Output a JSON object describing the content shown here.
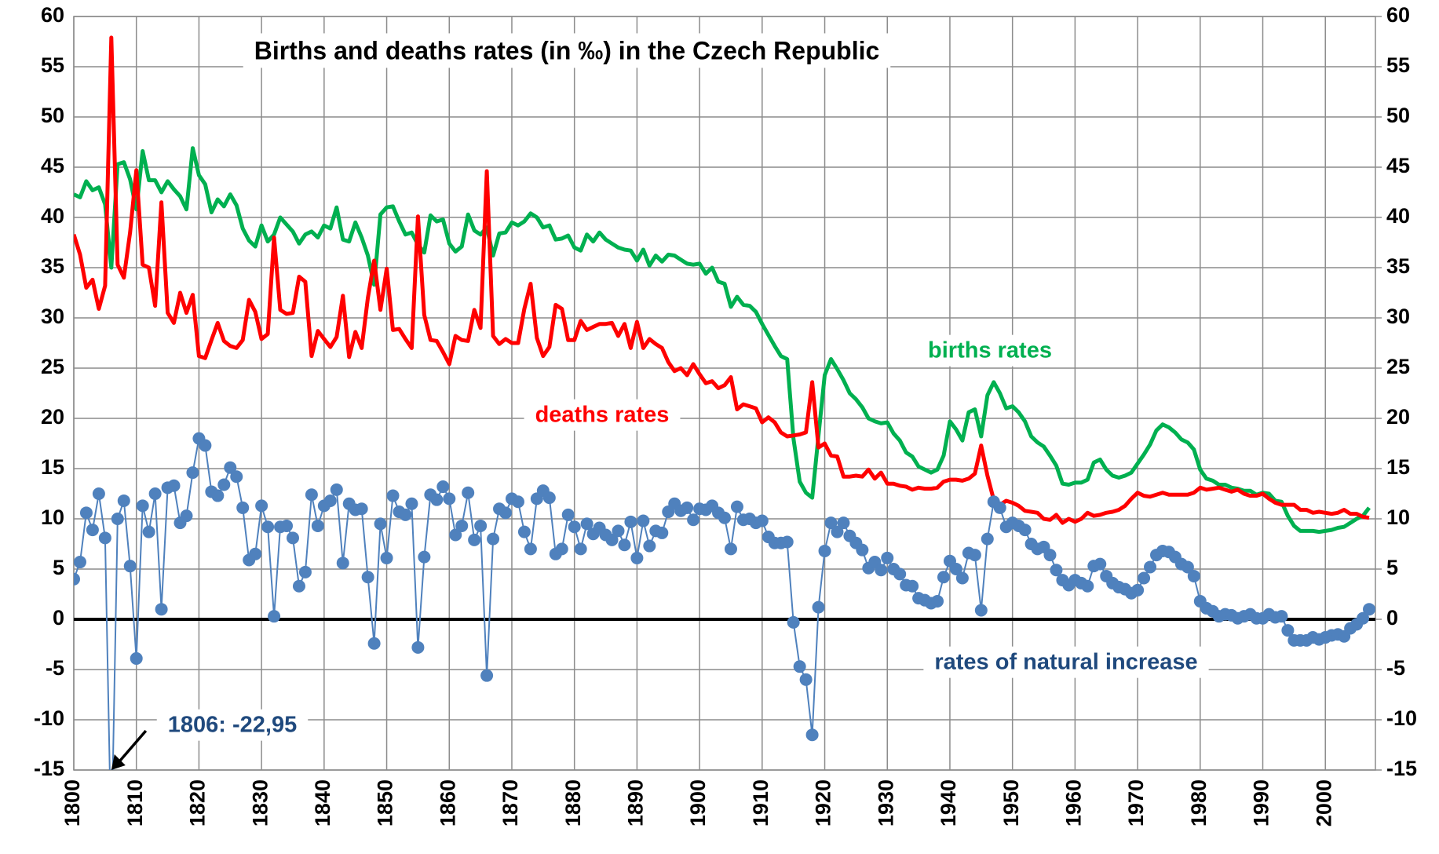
{
  "chart_data": {
    "type": "line",
    "title": "Births and deaths rates (in ‰) in the Czech Republic",
    "x": [
      1800,
      1801,
      1802,
      1803,
      1804,
      1805,
      1806,
      1807,
      1808,
      1809,
      1810,
      1811,
      1812,
      1813,
      1814,
      1815,
      1816,
      1817,
      1818,
      1819,
      1820,
      1821,
      1822,
      1823,
      1824,
      1825,
      1826,
      1827,
      1828,
      1829,
      1830,
      1831,
      1832,
      1833,
      1834,
      1835,
      1836,
      1837,
      1838,
      1839,
      1840,
      1841,
      1842,
      1843,
      1844,
      1845,
      1846,
      1847,
      1848,
      1849,
      1850,
      1851,
      1852,
      1853,
      1854,
      1855,
      1856,
      1857,
      1858,
      1859,
      1860,
      1861,
      1862,
      1863,
      1864,
      1865,
      1866,
      1867,
      1868,
      1869,
      1870,
      1871,
      1872,
      1873,
      1874,
      1875,
      1876,
      1877,
      1878,
      1879,
      1880,
      1881,
      1882,
      1883,
      1884,
      1885,
      1886,
      1887,
      1888,
      1889,
      1890,
      1891,
      1892,
      1893,
      1894,
      1895,
      1896,
      1897,
      1898,
      1899,
      1900,
      1901,
      1902,
      1903,
      1904,
      1905,
      1906,
      1907,
      1908,
      1909,
      1910,
      1911,
      1912,
      1913,
      1914,
      1915,
      1916,
      1917,
      1918,
      1919,
      1920,
      1921,
      1922,
      1923,
      1924,
      1925,
      1926,
      1927,
      1928,
      1929,
      1930,
      1931,
      1932,
      1933,
      1934,
      1935,
      1936,
      1937,
      1938,
      1939,
      1940,
      1941,
      1942,
      1943,
      1944,
      1945,
      1946,
      1947,
      1948,
      1949,
      1950,
      1951,
      1952,
      1953,
      1954,
      1955,
      1956,
      1957,
      1958,
      1959,
      1960,
      1961,
      1962,
      1963,
      1964,
      1965,
      1966,
      1967,
      1968,
      1969,
      1970,
      1971,
      1972,
      1973,
      1974,
      1975,
      1976,
      1977,
      1978,
      1979,
      1980,
      1981,
      1982,
      1983,
      1984,
      1985,
      1986,
      1987,
      1988,
      1989,
      1990,
      1991,
      1992,
      1993,
      1994,
      1995,
      1996,
      1997,
      1998,
      1999,
      2000,
      2001,
      2002,
      2003,
      2004,
      2005,
      2006,
      2007
    ],
    "series": [
      {
        "name": "births rates",
        "color": "#00b050",
        "values": [
          42.3,
          42.0,
          43.6,
          42.7,
          43.0,
          41.3,
          35.0,
          45.3,
          45.5,
          43.8,
          40.8,
          46.6,
          43.7,
          43.7,
          42.5,
          43.6,
          42.8,
          42.1,
          40.8,
          46.9,
          44.2,
          43.3,
          40.5,
          41.8,
          41.1,
          42.3,
          41.2,
          38.9,
          37.7,
          37.1,
          39.2,
          37.6,
          38.3,
          40.0,
          39.3,
          38.6,
          37.4,
          38.3,
          38.6,
          38.0,
          39.2,
          38.9,
          41.0,
          37.8,
          37.6,
          39.5,
          38.0,
          36.2,
          33.3,
          40.3,
          41.0,
          41.1,
          39.6,
          38.3,
          38.5,
          37.3,
          36.5,
          40.2,
          39.6,
          39.8,
          37.4,
          36.6,
          37.1,
          40.3,
          38.7,
          38.3,
          39.0,
          36.2,
          38.4,
          38.5,
          39.5,
          39.2,
          39.6,
          40.4,
          40.0,
          39.0,
          39.2,
          37.8,
          37.9,
          38.2,
          37.0,
          36.7,
          38.3,
          37.6,
          38.5,
          37.8,
          37.4,
          37.0,
          36.8,
          36.7,
          35.7,
          36.8,
          35.2,
          36.2,
          35.6,
          36.3,
          36.2,
          35.8,
          35.4,
          35.3,
          35.4,
          34.4,
          35.0,
          33.6,
          33.4,
          31.1,
          32.1,
          31.3,
          31.2,
          30.6,
          29.4,
          28.3,
          27.2,
          26.2,
          25.9,
          18.0,
          13.7,
          12.6,
          12.1,
          18.3,
          24.3,
          25.9,
          24.9,
          23.8,
          22.5,
          21.9,
          21.1,
          20.0,
          19.7,
          19.5,
          19.6,
          18.5,
          17.8,
          16.6,
          16.2,
          15.2,
          14.9,
          14.6,
          14.9,
          16.3,
          19.7,
          18.9,
          17.8,
          20.6,
          20.9,
          18.2,
          22.3,
          23.6,
          22.5,
          21.0,
          21.2,
          20.6,
          19.7,
          18.2,
          17.6,
          17.2,
          16.3,
          15.3,
          13.5,
          13.4,
          13.6,
          13.6,
          13.9,
          15.6,
          15.9,
          14.9,
          14.3,
          14.1,
          14.3,
          14.6,
          15.5,
          16.4,
          17.4,
          18.8,
          19.4,
          19.1,
          18.6,
          17.9,
          17.6,
          16.9,
          14.9,
          14.0,
          13.8,
          13.4,
          13.4,
          13.1,
          13.0,
          12.8,
          12.8,
          12.4,
          12.6,
          12.5,
          11.8,
          11.7,
          10.3,
          9.3,
          8.8,
          8.8,
          8.8,
          8.7,
          8.8,
          8.9,
          9.1,
          9.2,
          9.6,
          10.0,
          10.3,
          11.1
        ]
      },
      {
        "name": "deaths rates",
        "color": "#ff0000",
        "values": [
          38.3,
          36.3,
          33.0,
          33.8,
          30.9,
          33.2,
          57.9,
          35.3,
          34.0,
          38.5,
          44.7,
          35.3,
          35.0,
          31.2,
          41.5,
          30.5,
          29.5,
          32.5,
          30.5,
          32.3,
          26.2,
          26.0,
          27.8,
          29.5,
          27.7,
          27.2,
          27.0,
          27.8,
          31.8,
          30.6,
          27.9,
          28.4,
          38.0,
          30.8,
          30.4,
          30.5,
          34.1,
          33.6,
          26.2,
          28.7,
          27.9,
          27.1,
          28.1,
          32.2,
          26.1,
          28.6,
          27.0,
          32.0,
          35.7,
          30.8,
          34.9,
          28.8,
          28.9,
          27.9,
          27.0,
          40.1,
          30.3,
          27.8,
          27.7,
          26.6,
          25.4,
          28.2,
          27.8,
          27.7,
          30.8,
          29.0,
          44.6,
          28.2,
          27.4,
          27.9,
          27.5,
          27.5,
          30.9,
          33.4,
          28.0,
          26.2,
          27.1,
          31.3,
          30.9,
          27.8,
          27.8,
          29.7,
          28.8,
          29.1,
          29.4,
          29.4,
          29.5,
          28.2,
          29.4,
          27.0,
          29.6,
          27.0,
          27.9,
          27.4,
          27.0,
          25.6,
          24.7,
          25.0,
          24.3,
          25.4,
          24.4,
          23.5,
          23.7,
          23.0,
          23.3,
          24.1,
          20.9,
          21.4,
          21.2,
          21.0,
          19.6,
          20.1,
          19.6,
          18.6,
          18.2,
          18.3,
          18.4,
          18.6,
          23.6,
          17.1,
          17.5,
          16.3,
          16.2,
          14.2,
          14.2,
          14.3,
          14.2,
          14.9,
          14.0,
          14.6,
          13.5,
          13.5,
          13.3,
          13.2,
          12.9,
          13.1,
          13.0,
          13.0,
          13.1,
          13.7,
          13.9,
          13.9,
          13.8,
          14.0,
          14.5,
          17.3,
          14.3,
          11.9,
          11.4,
          11.8,
          11.6,
          11.3,
          10.8,
          10.7,
          10.6,
          10.0,
          9.9,
          10.4,
          9.6,
          10.0,
          9.7,
          10.0,
          10.6,
          10.3,
          10.4,
          10.6,
          10.7,
          10.9,
          11.3,
          12.0,
          12.6,
          12.3,
          12.2,
          12.4,
          12.6,
          12.4,
          12.4,
          12.4,
          12.4,
          12.6,
          13.1,
          12.9,
          13.0,
          13.1,
          12.9,
          12.7,
          12.9,
          12.5,
          12.3,
          12.3,
          12.5,
          12.0,
          11.6,
          11.4,
          11.4,
          11.4,
          10.9,
          10.9,
          10.6,
          10.7,
          10.6,
          10.5,
          10.6,
          10.9,
          10.5,
          10.5,
          10.2,
          10.1
        ]
      },
      {
        "name": "rates of natural increase",
        "color": "#4f81bd",
        "label_color": "#1f497d",
        "markers": true,
        "values": [
          4.0,
          5.7,
          10.6,
          8.9,
          12.5,
          8.1,
          -22.95,
          10.0,
          11.8,
          5.3,
          -3.9,
          11.3,
          8.7,
          12.5,
          1.0,
          13.1,
          13.3,
          9.6,
          10.3,
          14.6,
          18.0,
          17.3,
          12.7,
          12.3,
          13.4,
          15.1,
          14.2,
          11.1,
          5.9,
          6.5,
          11.3,
          9.2,
          0.3,
          9.2,
          9.3,
          8.1,
          3.3,
          4.7,
          12.4,
          9.3,
          11.3,
          11.8,
          12.9,
          5.6,
          11.5,
          10.9,
          11.0,
          4.2,
          -2.4,
          9.5,
          6.1,
          12.3,
          10.7,
          10.4,
          11.5,
          -2.8,
          6.2,
          12.4,
          11.9,
          13.2,
          12.0,
          8.4,
          9.3,
          12.6,
          7.9,
          9.3,
          -5.6,
          8.0,
          11.0,
          10.6,
          12.0,
          11.7,
          8.7,
          7.0,
          12.0,
          12.8,
          12.1,
          6.5,
          7.0,
          10.4,
          9.2,
          7.0,
          9.5,
          8.5,
          9.1,
          8.4,
          7.9,
          8.8,
          7.4,
          9.7,
          6.1,
          9.8,
          7.3,
          8.8,
          8.6,
          10.7,
          11.5,
          10.8,
          11.1,
          9.9,
          11.0,
          10.9,
          11.3,
          10.6,
          10.1,
          7.0,
          11.2,
          9.9,
          10.0,
          9.6,
          9.8,
          8.2,
          7.6,
          7.6,
          7.7,
          -0.3,
          -4.7,
          -6.0,
          -11.5,
          1.2,
          6.8,
          9.6,
          8.7,
          9.6,
          8.3,
          7.6,
          6.9,
          5.1,
          5.7,
          4.9,
          6.1,
          5.0,
          4.5,
          3.4,
          3.3,
          2.1,
          1.9,
          1.6,
          1.8,
          4.2,
          5.8,
          5.0,
          4.1,
          6.6,
          6.4,
          0.9,
          8.0,
          11.7,
          11.1,
          9.2,
          9.6,
          9.3,
          8.9,
          7.5,
          7.0,
          7.2,
          6.4,
          4.9,
          3.9,
          3.4,
          3.9,
          3.6,
          3.3,
          5.3,
          5.5,
          4.3,
          3.6,
          3.2,
          3.0,
          2.6,
          2.9,
          4.1,
          5.2,
          6.4,
          6.8,
          6.7,
          6.2,
          5.5,
          5.2,
          4.3,
          1.8,
          1.1,
          0.8,
          0.3,
          0.5,
          0.4,
          0.1,
          0.3,
          0.5,
          0.1,
          0.1,
          0.5,
          0.2,
          0.3,
          -1.1,
          -2.1,
          -2.1,
          -2.1,
          -1.8,
          -2.0,
          -1.8,
          -1.6,
          -1.5,
          -1.7,
          -0.9,
          -0.5,
          0.1,
          1.0
        ]
      }
    ],
    "annotations": [
      {
        "text": "1806:  -22,95",
        "x": 1806,
        "y": -22.95,
        "color": "#1f497d"
      }
    ],
    "xlim": [
      1800,
      2008
    ],
    "xticks": [
      1800,
      1810,
      1820,
      1830,
      1840,
      1850,
      1860,
      1870,
      1880,
      1890,
      1900,
      1910,
      1920,
      1930,
      1940,
      1950,
      1960,
      1970,
      1980,
      1990,
      2000
    ],
    "ylim": [
      -15,
      60
    ],
    "yticks": [
      -15,
      -10,
      -5,
      0,
      5,
      10,
      15,
      20,
      25,
      30,
      35,
      40,
      45,
      50,
      55,
      60
    ],
    "y2lim": [
      -15,
      60
    ],
    "y2ticks": [
      -15,
      -10,
      -5,
      0,
      5,
      10,
      15,
      20,
      25,
      30,
      35,
      40,
      45,
      50,
      55,
      60
    ],
    "grid": true
  }
}
